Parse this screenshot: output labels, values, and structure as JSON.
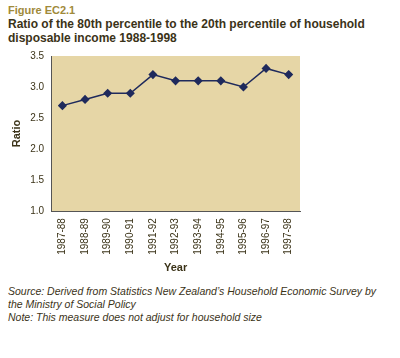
{
  "chart_data": {
    "type": "line",
    "figure": "Figure EC2.1",
    "title": "Ratio of the 80th percentile to the 20th percentile of household disposable income 1988-1998",
    "x_label": "Year",
    "y_label": "Ratio",
    "source": "Source: Derived from Statistics New Zealand’s Household Economic Survey by the Ministry of Social Policy",
    "note": "Note: This measure does not adjust for household size",
    "categories": [
      "1987-88",
      "1988-89",
      "1989-90",
      "1990-91",
      "1991-92",
      "1992-93",
      "1993-94",
      "1994-95",
      "1995-96",
      "1996-97",
      "1997-98"
    ],
    "values": [
      2.7,
      2.8,
      2.9,
      2.9,
      3.2,
      3.1,
      3.1,
      3.1,
      3.0,
      3.3,
      3.2
    ],
    "color": "#1f2a5c",
    "marker": "diamond",
    "ylim": [
      1,
      3.5
    ],
    "yticks": [
      {
        "value": 1,
        "label": "1.0"
      },
      1.5,
      {
        "value": 2,
        "label": "2.0"
      },
      2.5,
      {
        "value": 3,
        "label": "3.0"
      },
      3.5
    ],
    "grid": false
  }
}
